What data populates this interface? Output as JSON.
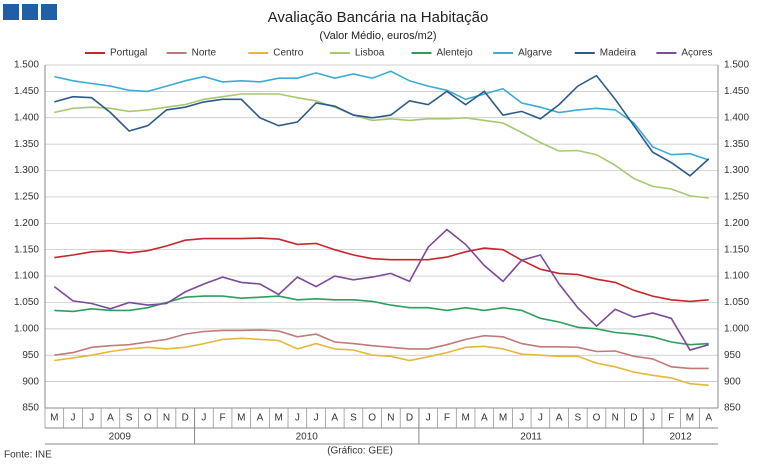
{
  "chart_data": {
    "type": "line",
    "title": "Avaliação Bancária na Habitação",
    "subtitle": "(Valor Médio, euros/m2)",
    "source": "Fonte: INE",
    "credit": "(Gráfico: GEE)",
    "categories": [
      "M",
      "J",
      "J",
      "A",
      "S",
      "O",
      "N",
      "D",
      "J",
      "F",
      "M",
      "A",
      "M",
      "J",
      "J",
      "A",
      "S",
      "O",
      "N",
      "D",
      "J",
      "F",
      "M",
      "A",
      "M",
      "J",
      "J",
      "A",
      "S",
      "O",
      "N",
      "D",
      "J",
      "F",
      "M",
      "A"
    ],
    "years": [
      "2009",
      "2010",
      "2011",
      "2012"
    ],
    "ylim": [
      850,
      1500
    ],
    "yticks": [
      {
        "value": 1500,
        "label": "1.500"
      },
      {
        "value": 1450,
        "label": "1.450"
      },
      {
        "value": 1400,
        "label": "1.400"
      },
      {
        "value": 1350,
        "label": "1.350"
      },
      {
        "value": 1300,
        "label": "1.300"
      },
      {
        "value": 1250,
        "label": "1.250"
      },
      {
        "value": 1200,
        "label": "1.200"
      },
      {
        "value": 1150,
        "label": "1.150"
      },
      {
        "value": 1100,
        "label": "1.100"
      },
      {
        "value": 1050,
        "label": "1.050"
      },
      {
        "value": 1000,
        "label": "1.000"
      },
      950,
      900,
      850
    ],
    "grid": true,
    "legend": "top",
    "series": [
      {
        "name": "Portugal",
        "color": "#c8262c",
        "values": [
          1135,
          1140,
          1146,
          1148,
          1144,
          1148,
          1157,
          1168,
          1171,
          1171,
          1171,
          1172,
          1170,
          1160,
          1162,
          1150,
          1140,
          1133,
          1131,
          1131,
          1131,
          1136,
          1146,
          1153,
          1150,
          1130,
          1113,
          1105,
          1103,
          1094,
          1088,
          1073,
          1062,
          1055,
          1052,
          1055
        ]
      },
      {
        "name": "Norte",
        "color": "#c07a78",
        "values": [
          950,
          955,
          965,
          968,
          970,
          975,
          980,
          990,
          995,
          997,
          997,
          998,
          996,
          985,
          990,
          975,
          972,
          968,
          965,
          962,
          962,
          970,
          980,
          987,
          985,
          972,
          966,
          966,
          965,
          957,
          958,
          948,
          943,
          928,
          925,
          925
        ]
      },
      {
        "name": "Centro",
        "color": "#e4b83a",
        "values": [
          940,
          945,
          950,
          957,
          962,
          965,
          962,
          965,
          972,
          980,
          982,
          980,
          978,
          962,
          972,
          962,
          960,
          950,
          948,
          940,
          947,
          955,
          965,
          967,
          962,
          952,
          950,
          948,
          948,
          935,
          928,
          918,
          912,
          907,
          896,
          893
        ]
      },
      {
        "name": "Lisboa",
        "color": "#a8c870",
        "values": [
          1410,
          1418,
          1420,
          1418,
          1412,
          1415,
          1420,
          1425,
          1435,
          1440,
          1445,
          1445,
          1445,
          1438,
          1432,
          1420,
          1405,
          1395,
          1398,
          1395,
          1398,
          1398,
          1400,
          1395,
          1390,
          1372,
          1353,
          1337,
          1338,
          1330,
          1310,
          1285,
          1270,
          1265,
          1252,
          1248
        ]
      },
      {
        "name": "Alentejo",
        "color": "#2f9e5c",
        "values": [
          1035,
          1033,
          1038,
          1035,
          1035,
          1040,
          1050,
          1060,
          1062,
          1062,
          1058,
          1060,
          1062,
          1055,
          1057,
          1055,
          1055,
          1052,
          1045,
          1040,
          1040,
          1035,
          1040,
          1035,
          1040,
          1035,
          1020,
          1013,
          1003,
          1000,
          993,
          990,
          985,
          975,
          970,
          972
        ]
      },
      {
        "name": "Algarve",
        "color": "#3eaad8",
        "values": [
          1478,
          1470,
          1465,
          1460,
          1452,
          1450,
          1460,
          1470,
          1478,
          1468,
          1470,
          1468,
          1475,
          1475,
          1485,
          1475,
          1483,
          1475,
          1488,
          1470,
          1460,
          1452,
          1435,
          1445,
          1455,
          1428,
          1420,
          1410,
          1415,
          1418,
          1415,
          1390,
          1345,
          1330,
          1332,
          1320
        ]
      },
      {
        "name": "Madeira",
        "color": "#2c5a8c",
        "values": [
          1430,
          1440,
          1438,
          1410,
          1375,
          1385,
          1415,
          1420,
          1430,
          1435,
          1435,
          1400,
          1385,
          1392,
          1428,
          1422,
          1405,
          1400,
          1405,
          1432,
          1425,
          1450,
          1425,
          1450,
          1405,
          1412,
          1398,
          1425,
          1460,
          1480,
          1435,
          1385,
          1335,
          1315,
          1290,
          1322
        ]
      },
      {
        "name": "Açores",
        "color": "#7b4a9c",
        "values": [
          1080,
          1053,
          1048,
          1038,
          1050,
          1045,
          1048,
          1070,
          1085,
          1098,
          1088,
          1085,
          1065,
          1098,
          1080,
          1100,
          1093,
          1098,
          1105,
          1090,
          1155,
          1188,
          1160,
          1120,
          1090,
          1130,
          1140,
          1085,
          1040,
          1005,
          1037,
          1022,
          1030,
          1020,
          960,
          970
        ]
      }
    ]
  }
}
